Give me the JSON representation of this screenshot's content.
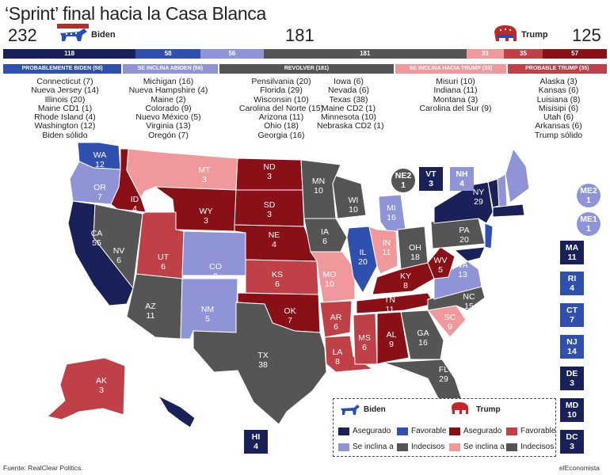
{
  "title": "‘Sprint’ final hacia la Casa Blanca",
  "totals": {
    "biden": "232",
    "tossup": "181",
    "trump": "125"
  },
  "candidates": {
    "biden": "Biden",
    "trump": "Trump"
  },
  "colors": {
    "biden_solid": "#1a2158",
    "biden_lean": "#3050b0",
    "biden_tilt": "#8e94d6",
    "tossup": "#555555",
    "trump_tilt": "#f0999c",
    "trump_lean": "#c04048",
    "trump_solid": "#8a1018"
  },
  "bar": [
    {
      "label": "118",
      "value": 118,
      "color": "#1a2158"
    },
    {
      "label": "58",
      "value": 58,
      "color": "#3050b0"
    },
    {
      "label": "56",
      "value": 56,
      "color": "#8e94d6"
    },
    {
      "label": "181",
      "value": 181,
      "color": "#555555"
    },
    {
      "label": "33",
      "value": 33,
      "color": "#f0999c"
    },
    {
      "label": "35",
      "value": 35,
      "color": "#c04048"
    },
    {
      "label": "57",
      "value": 57,
      "color": "#8a1018"
    }
  ],
  "headers": [
    {
      "label": "PROBABLEMENTE BIDEN (58)",
      "color": "#3050b0"
    },
    {
      "label": "SE INCLINA ABIDEN (56)",
      "color": "#8e94d6"
    },
    {
      "label": "REVOLVER (181)",
      "color": "#555555"
    },
    {
      "label": "SE INCLINA HACIA TRUMP (33)",
      "color": "#f0999c"
    },
    {
      "label": "PROBABLE TRUMP (35)",
      "color": "#c04048"
    }
  ],
  "lists": {
    "probable_biden": [
      "Connecticut (7)",
      "Nueva Jersey (14)",
      "Illinois (20)",
      "Maine CD1 (1)",
      "Rhode Island (4)",
      "Washington (12)",
      "Biden sólido"
    ],
    "inclina_biden": [
      "Michigan (16)",
      "Nueva Hampshire (4)",
      "Maine (2)",
      "Colorado (9)",
      "Nuevo México (5)",
      "Virginia (13)",
      "Oregón (7)"
    ],
    "revolver_a": [
      "Pensilvania (20)",
      "Florida (29)",
      "Wisconsin (10)",
      "Carolina del Norte (15)",
      "Arizona (11)",
      "Ohio (18)",
      "Georgia (16)"
    ],
    "revolver_b": [
      "Iowa (6)",
      "Nevada (6)",
      "Texas (38)",
      "Maine CD2 (1)",
      "Minnesota (10)",
      "Nebraska CD2 (1)"
    ],
    "inclina_trump": [
      "Misuri (10)",
      "Indiana (11)",
      "Montana (3)",
      "Carolina del Sur (9)"
    ],
    "probable_trump": [
      "Alaska (3)",
      "Kansas (6)",
      "Luisiana (8)",
      "Misisipi (6)",
      "Utah (6)",
      "Arkansas (6)",
      "Trump sólido"
    ]
  },
  "states": [
    {
      "abbr": "WA",
      "ev": "12"
    },
    {
      "abbr": "OR",
      "ev": "7"
    },
    {
      "abbr": "CA",
      "ev": "55"
    },
    {
      "abbr": "ID",
      "ev": "4"
    },
    {
      "abbr": "NV",
      "ev": "6"
    },
    {
      "abbr": "MT",
      "ev": "3"
    },
    {
      "abbr": "WY",
      "ev": "3"
    },
    {
      "abbr": "UT",
      "ev": "6"
    },
    {
      "abbr": "AZ",
      "ev": "11"
    },
    {
      "abbr": "CO",
      "ev": "9"
    },
    {
      "abbr": "NM",
      "ev": "5"
    },
    {
      "abbr": "ND",
      "ev": "3"
    },
    {
      "abbr": "SD",
      "ev": "3"
    },
    {
      "abbr": "NE",
      "ev": "4"
    },
    {
      "abbr": "KS",
      "ev": "6"
    },
    {
      "abbr": "OK",
      "ev": "7"
    },
    {
      "abbr": "TX",
      "ev": "38"
    },
    {
      "abbr": "MN",
      "ev": "10"
    },
    {
      "abbr": "IA",
      "ev": "6"
    },
    {
      "abbr": "MO",
      "ev": "10"
    },
    {
      "abbr": "AR",
      "ev": "6"
    },
    {
      "abbr": "LA",
      "ev": "8"
    },
    {
      "abbr": "WI",
      "ev": "10"
    },
    {
      "abbr": "IL",
      "ev": "20"
    },
    {
      "abbr": "MI",
      "ev": "16"
    },
    {
      "abbr": "IN",
      "ev": "11"
    },
    {
      "abbr": "OH",
      "ev": "18"
    },
    {
      "abbr": "KY",
      "ev": "8"
    },
    {
      "abbr": "TN",
      "ev": "11"
    },
    {
      "abbr": "MS",
      "ev": "6"
    },
    {
      "abbr": "AL",
      "ev": "9"
    },
    {
      "abbr": "GA",
      "ev": "16"
    },
    {
      "abbr": "FL",
      "ev": "29"
    },
    {
      "abbr": "SC",
      "ev": "9"
    },
    {
      "abbr": "NC",
      "ev": "15"
    },
    {
      "abbr": "VA",
      "ev": "13"
    },
    {
      "abbr": "WV",
      "ev": "5"
    },
    {
      "abbr": "PA",
      "ev": "20"
    },
    {
      "abbr": "NY",
      "ev": "29"
    },
    {
      "abbr": "AK",
      "ev": "3"
    },
    {
      "abbr": "HI",
      "ev": "4"
    }
  ],
  "small_boxes": [
    {
      "abbr": "NE2",
      "ev": "1"
    },
    {
      "abbr": "VT",
      "ev": "3"
    },
    {
      "abbr": "NH",
      "ev": "4"
    },
    {
      "abbr": "ME2",
      "ev": "1"
    },
    {
      "abbr": "ME1",
      "ev": "1"
    },
    {
      "abbr": "MA",
      "ev": "11"
    },
    {
      "abbr": "RI",
      "ev": "4"
    },
    {
      "abbr": "CT",
      "ev": "7"
    },
    {
      "abbr": "NJ",
      "ev": "14"
    },
    {
      "abbr": "DE",
      "ev": "3"
    },
    {
      "abbr": "MD",
      "ev": "10"
    },
    {
      "abbr": "DC",
      "ev": "3"
    }
  ],
  "legend": {
    "biden": "Biden",
    "trump": "Trump",
    "asegurado": "Asegurado",
    "favorable": "Favorable",
    "se_inclina": "Se inclina a",
    "indecisos": "Indecisos"
  },
  "footer": {
    "source": "Fuente: RealClear Politics.",
    "brand": "elEconomista"
  }
}
